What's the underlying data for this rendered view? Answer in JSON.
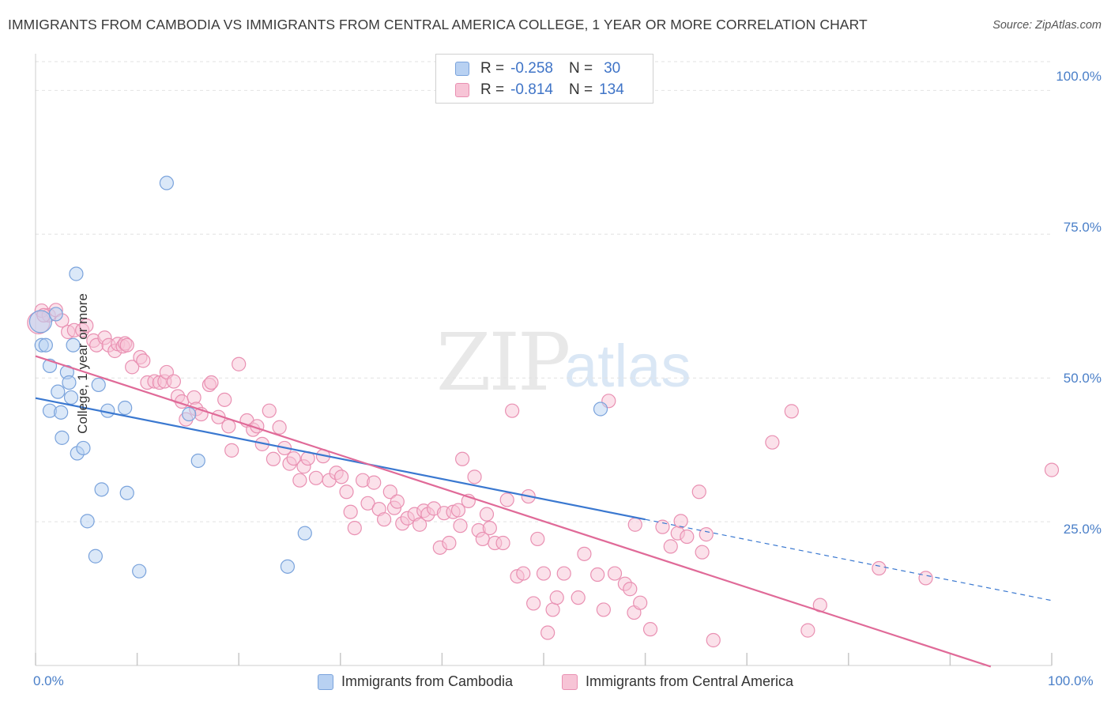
{
  "title": "IMMIGRANTS FROM CAMBODIA VS IMMIGRANTS FROM CENTRAL AMERICA COLLEGE, 1 YEAR OR MORE CORRELATION CHART",
  "source": "Source: ZipAtlas.com",
  "watermark": {
    "zip": "ZIP",
    "atlas": "atlas"
  },
  "legend": {
    "rows": [
      {
        "r_label": "R =",
        "r_value": "-0.258",
        "n_label": "N =",
        "n_value": "30"
      },
      {
        "r_label": "R =",
        "r_value": "-0.814",
        "n_label": "N =",
        "n_value": "134"
      }
    ]
  },
  "bottom_legend": [
    "Immigrants from Cambodia",
    "Immigrants from Central America"
  ],
  "colors": {
    "cambodia_fill": "#b8d1f2",
    "cambodia_stroke": "#7aa3dc",
    "cambodia_line": "#3a78d0",
    "central_fill": "#f7c4d6",
    "central_stroke": "#e990b2",
    "central_line": "#e06a98",
    "grid": "#e2e2e2",
    "tick_text": "#4a7fc8"
  },
  "chart_data": {
    "type": "scatter",
    "title": "IMMIGRANTS FROM CAMBODIA VS IMMIGRANTS FROM CENTRAL AMERICA COLLEGE, 1 YEAR OR MORE CORRELATION CHART",
    "xlabel": "",
    "ylabel": "College, 1 year or more",
    "xlim": [
      0,
      100
    ],
    "ylim": [
      0,
      105
    ],
    "x_tick_labels": [
      "0.0%",
      "100.0%"
    ],
    "y_tick_values": [
      25,
      50,
      75,
      100
    ],
    "y_tick_labels": [
      "25.0%",
      "50.0%",
      "75.0%",
      "100.0%"
    ],
    "grid": true,
    "legend_position": "top-center",
    "series": [
      {
        "name": "Immigrants from Cambodia",
        "points": [
          [
            0.5,
            59.8
          ],
          [
            0.6,
            55.7
          ],
          [
            1.0,
            55.7
          ],
          [
            1.4,
            52.1
          ],
          [
            1.4,
            44.3
          ],
          [
            2.0,
            61.1
          ],
          [
            2.2,
            47.6
          ],
          [
            2.5,
            44.0
          ],
          [
            2.6,
            39.6
          ],
          [
            3.1,
            51.0
          ],
          [
            3.3,
            49.2
          ],
          [
            3.5,
            46.6
          ],
          [
            3.7,
            55.7
          ],
          [
            4.0,
            68.1
          ],
          [
            4.1,
            36.9
          ],
          [
            4.7,
            37.8
          ],
          [
            5.1,
            25.1
          ],
          [
            5.9,
            19.0
          ],
          [
            6.2,
            48.8
          ],
          [
            6.5,
            30.6
          ],
          [
            7.1,
            44.3
          ],
          [
            8.8,
            44.8
          ],
          [
            9.0,
            30.0
          ],
          [
            10.2,
            16.4
          ],
          [
            12.9,
            83.9
          ],
          [
            15.1,
            43.7
          ],
          [
            16.0,
            35.6
          ],
          [
            24.8,
            17.2
          ],
          [
            26.5,
            23.0
          ],
          [
            55.6,
            44.6
          ]
        ],
        "trend": {
          "x0": 0,
          "y0": 46.5,
          "x1": 60,
          "y1": 25.4,
          "dashed_to": 100,
          "dashed_y": 11.3
        }
      },
      {
        "name": "Immigrants from Central America",
        "points": [
          [
            0.3,
            59.6
          ],
          [
            0.6,
            61.7
          ],
          [
            1.3,
            60.9
          ],
          [
            2.0,
            61.8
          ],
          [
            2.6,
            60.0
          ],
          [
            3.2,
            58.0
          ],
          [
            3.8,
            58.3
          ],
          [
            4.6,
            58.3
          ],
          [
            5.0,
            59.1
          ],
          [
            5.7,
            56.5
          ],
          [
            6.0,
            55.7
          ],
          [
            6.8,
            57.0
          ],
          [
            7.2,
            55.7
          ],
          [
            7.8,
            54.7
          ],
          [
            8.1,
            55.9
          ],
          [
            8.6,
            55.5
          ],
          [
            8.8,
            56.0
          ],
          [
            9.0,
            55.7
          ],
          [
            9.5,
            51.9
          ],
          [
            10.3,
            53.6
          ],
          [
            10.6,
            53.0
          ],
          [
            11.0,
            49.2
          ],
          [
            11.7,
            49.4
          ],
          [
            12.2,
            49.2
          ],
          [
            12.7,
            49.4
          ],
          [
            12.9,
            51.0
          ],
          [
            13.6,
            49.4
          ],
          [
            14.0,
            46.8
          ],
          [
            14.4,
            45.9
          ],
          [
            14.8,
            42.8
          ],
          [
            15.6,
            46.6
          ],
          [
            15.8,
            44.6
          ],
          [
            16.3,
            43.7
          ],
          [
            17.1,
            48.8
          ],
          [
            17.3,
            49.2
          ],
          [
            18.0,
            43.2
          ],
          [
            18.6,
            46.2
          ],
          [
            19.0,
            41.6
          ],
          [
            19.3,
            37.4
          ],
          [
            20.0,
            52.4
          ],
          [
            20.8,
            42.6
          ],
          [
            21.4,
            41.0
          ],
          [
            21.8,
            41.6
          ],
          [
            22.3,
            38.5
          ],
          [
            23.0,
            44.3
          ],
          [
            23.4,
            35.9
          ],
          [
            24.0,
            41.4
          ],
          [
            24.5,
            37.8
          ],
          [
            25.0,
            35.1
          ],
          [
            25.4,
            36.0
          ],
          [
            26.0,
            32.2
          ],
          [
            26.4,
            34.6
          ],
          [
            26.8,
            36.0
          ],
          [
            27.6,
            32.6
          ],
          [
            28.3,
            36.4
          ],
          [
            28.9,
            32.2
          ],
          [
            29.6,
            33.5
          ],
          [
            30.1,
            32.8
          ],
          [
            30.6,
            30.2
          ],
          [
            31.0,
            26.7
          ],
          [
            31.4,
            23.9
          ],
          [
            32.2,
            32.2
          ],
          [
            32.7,
            28.2
          ],
          [
            33.3,
            31.8
          ],
          [
            33.8,
            27.2
          ],
          [
            34.3,
            25.4
          ],
          [
            34.9,
            30.2
          ],
          [
            35.3,
            27.4
          ],
          [
            35.6,
            28.5
          ],
          [
            36.1,
            24.7
          ],
          [
            36.6,
            25.6
          ],
          [
            37.3,
            26.3
          ],
          [
            37.8,
            24.5
          ],
          [
            38.2,
            26.9
          ],
          [
            38.6,
            26.3
          ],
          [
            39.2,
            27.3
          ],
          [
            39.8,
            20.5
          ],
          [
            40.2,
            26.5
          ],
          [
            40.7,
            21.3
          ],
          [
            41.1,
            26.7
          ],
          [
            41.6,
            27.0
          ],
          [
            41.8,
            24.3
          ],
          [
            42.0,
            35.9
          ],
          [
            42.6,
            28.6
          ],
          [
            43.2,
            32.8
          ],
          [
            43.6,
            23.5
          ],
          [
            44.0,
            22.0
          ],
          [
            44.4,
            26.3
          ],
          [
            44.7,
            23.9
          ],
          [
            45.2,
            21.3
          ],
          [
            46.0,
            21.3
          ],
          [
            46.4,
            28.8
          ],
          [
            46.9,
            44.3
          ],
          [
            47.4,
            15.5
          ],
          [
            48.0,
            16.0
          ],
          [
            48.5,
            29.4
          ],
          [
            49.0,
            10.8
          ],
          [
            49.4,
            22.0
          ],
          [
            50.0,
            16.0
          ],
          [
            50.4,
            5.7
          ],
          [
            50.9,
            9.7
          ],
          [
            51.3,
            11.8
          ],
          [
            52.0,
            16.0
          ],
          [
            53.4,
            11.8
          ],
          [
            54.0,
            19.4
          ],
          [
            55.3,
            15.8
          ],
          [
            55.9,
            9.7
          ],
          [
            56.4,
            46.0
          ],
          [
            57.0,
            16.0
          ],
          [
            58.0,
            14.2
          ],
          [
            58.5,
            13.3
          ],
          [
            58.9,
            9.2
          ],
          [
            59.0,
            24.5
          ],
          [
            59.5,
            10.9
          ],
          [
            60.5,
            6.3
          ],
          [
            61.7,
            24.1
          ],
          [
            62.5,
            20.7
          ],
          [
            63.2,
            23.0
          ],
          [
            63.5,
            25.1
          ],
          [
            64.1,
            22.4
          ],
          [
            65.3,
            30.2
          ],
          [
            65.6,
            19.7
          ],
          [
            66.0,
            22.8
          ],
          [
            66.7,
            4.4
          ],
          [
            72.5,
            38.8
          ],
          [
            74.4,
            44.2
          ],
          [
            76.0,
            6.1
          ],
          [
            77.2,
            10.5
          ],
          [
            83.0,
            16.9
          ],
          [
            87.6,
            15.2
          ],
          [
            100.0,
            34.0
          ],
          [
            0.8,
            60.9
          ]
        ],
        "trend": {
          "x0": 0,
          "y0": 53.8,
          "x1": 94,
          "y1": -0.2
        }
      }
    ]
  }
}
